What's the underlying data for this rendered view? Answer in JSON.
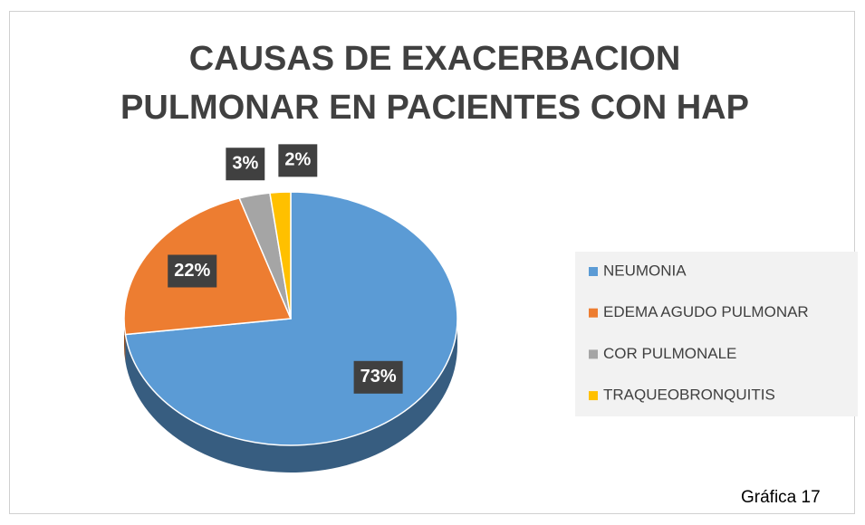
{
  "chart_data": {
    "type": "pie",
    "title": "CAUSAS DE EXACERBACION PULMONAR EN PACIENTES CON HAP",
    "categories": [
      "NEUMONIA",
      "EDEMA AGUDO PULMONAR",
      "COR PULMONALE",
      "TRAQUEOBRONQUITIS"
    ],
    "values": [
      73,
      22,
      3,
      2
    ],
    "value_labels": [
      "73%",
      "22%",
      "3%",
      "2%"
    ],
    "colors": [
      "#5b9bd5",
      "#ed7d31",
      "#a5a5a5",
      "#ffc000"
    ],
    "legend": "right",
    "caption": "Gráfica 17"
  }
}
